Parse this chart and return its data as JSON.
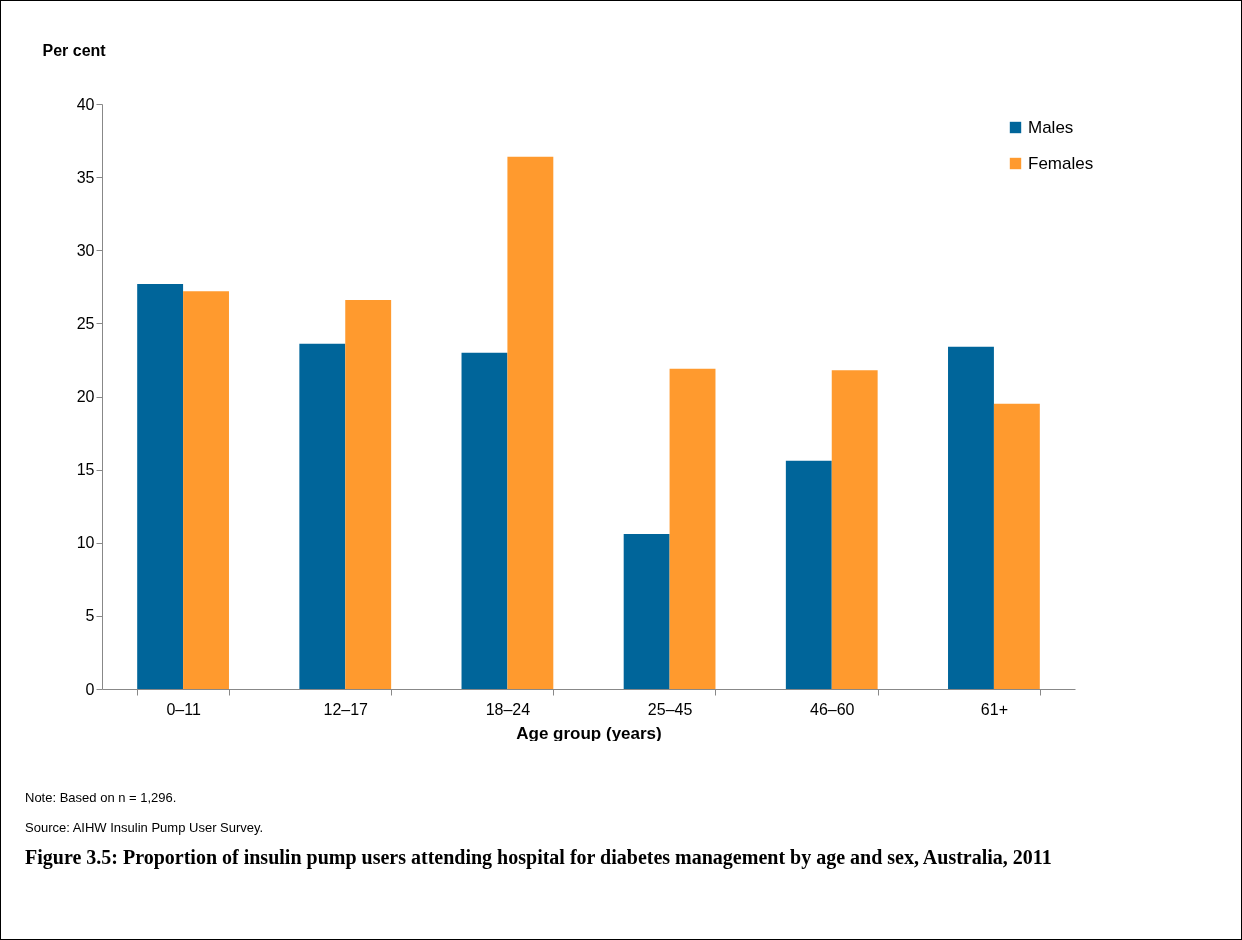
{
  "chart_data": {
    "type": "bar",
    "title": "Figure 3.5: Proportion of insulin pump users attending hospital for diabetes management by age and sex, Australia, 2011",
    "xlabel": "Age group (years)",
    "ylabel": "Per cent",
    "categories": [
      "0–11",
      "12–17",
      "18–24",
      "25–45",
      "46–60",
      "61+"
    ],
    "series": [
      {
        "name": "Males",
        "color": "#00659a",
        "values": [
          27.7,
          23.6,
          23.0,
          10.6,
          15.6,
          23.4
        ]
      },
      {
        "name": "Females",
        "color": "#ff9a2e",
        "values": [
          27.2,
          26.6,
          36.4,
          21.9,
          21.8,
          19.5
        ]
      }
    ],
    "ylim": [
      0,
      40
    ],
    "yticks": [
      0,
      5,
      10,
      15,
      20,
      25,
      30,
      35,
      40
    ],
    "grid": false,
    "legend": "top right",
    "annotations": [
      "Note: Based on n = 1,296.",
      "Source: AIHW Insulin Pump User Survey."
    ]
  }
}
